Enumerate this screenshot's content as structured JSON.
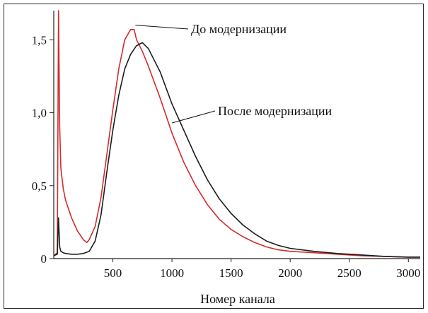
{
  "chart_data": {
    "type": "line",
    "title": "",
    "xlabel": "Номер канала",
    "ylabel": "",
    "xlim": [
      0,
      3100
    ],
    "ylim": [
      0,
      1.7
    ],
    "x_ticks": [
      500,
      1000,
      1500,
      2000,
      2500,
      3000
    ],
    "x_tick_labels": [
      "500",
      "1000",
      "1500",
      "2000",
      "2500",
      "3000"
    ],
    "y_ticks": [
      0,
      0.5,
      1.0,
      1.5
    ],
    "y_tick_labels": [
      "0",
      "0,5",
      "1,0",
      "1,5"
    ],
    "grid": false,
    "legend": "none",
    "series": [
      {
        "name": "До модернизации",
        "color": "#d42a2a",
        "x": [
          0,
          30,
          40,
          50,
          60,
          80,
          100,
          150,
          200,
          250,
          280,
          300,
          350,
          400,
          450,
          500,
          550,
          600,
          650,
          680,
          700,
          750,
          800,
          900,
          1000,
          1100,
          1200,
          1300,
          1400,
          1500,
          1600,
          1700,
          1800,
          1900,
          2000,
          2200,
          2400,
          2600,
          2800,
          3000,
          3100
        ],
        "y": [
          0.02,
          0.04,
          1.7,
          0.9,
          0.62,
          0.48,
          0.4,
          0.28,
          0.19,
          0.13,
          0.11,
          0.13,
          0.22,
          0.42,
          0.72,
          1.02,
          1.3,
          1.5,
          1.57,
          1.57,
          1.5,
          1.42,
          1.32,
          1.1,
          0.86,
          0.66,
          0.5,
          0.37,
          0.27,
          0.2,
          0.15,
          0.11,
          0.08,
          0.06,
          0.05,
          0.04,
          0.03,
          0.02,
          0.015,
          0.01,
          0.01
        ]
      },
      {
        "name": "После модернизации",
        "color": "#1c1c1c",
        "x": [
          0,
          30,
          40,
          50,
          60,
          80,
          100,
          150,
          200,
          250,
          300,
          350,
          400,
          450,
          500,
          550,
          600,
          650,
          700,
          750,
          800,
          850,
          900,
          1000,
          1100,
          1200,
          1300,
          1400,
          1500,
          1600,
          1700,
          1800,
          1900,
          2000,
          2200,
          2400,
          2600,
          2800,
          3000,
          3100
        ],
        "y": [
          0.02,
          0.03,
          0.28,
          0.08,
          0.05,
          0.04,
          0.035,
          0.03,
          0.03,
          0.035,
          0.05,
          0.12,
          0.3,
          0.6,
          0.88,
          1.12,
          1.3,
          1.4,
          1.46,
          1.48,
          1.44,
          1.36,
          1.28,
          1.06,
          0.88,
          0.7,
          0.54,
          0.41,
          0.31,
          0.23,
          0.17,
          0.12,
          0.09,
          0.07,
          0.05,
          0.035,
          0.025,
          0.015,
          0.01,
          0.01
        ]
      }
    ],
    "annotations": [
      {
        "text": "До модернизации",
        "series": "До модернизации",
        "x": 690,
        "y": 1.6
      },
      {
        "text": "После модернизации",
        "series": "После модернизации",
        "x": 1000,
        "y": 0.93
      }
    ]
  }
}
